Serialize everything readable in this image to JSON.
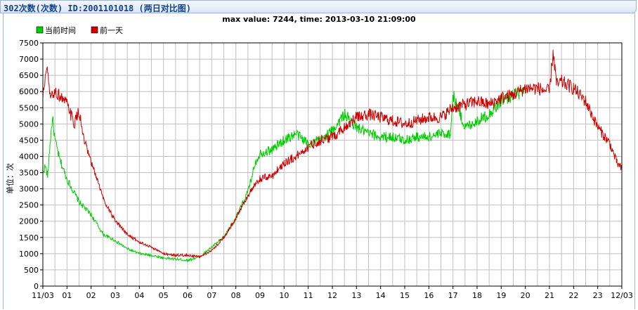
{
  "panel": {
    "title": "302次数(次数) ID:2001101018 (两日对比图)"
  },
  "colors": {
    "today": "#00cc00",
    "yesterday": "#cc0000",
    "grid": "#c0c0c0"
  },
  "chart_data": {
    "type": "line",
    "title": "max value: 7244, time: 2013-03-10 21:09:00",
    "xlabel": "",
    "ylabel": "单位：次",
    "ylim": [
      0,
      7500
    ],
    "yticks": [
      0,
      500,
      1000,
      1500,
      2000,
      2500,
      3000,
      3500,
      4000,
      4500,
      5000,
      5500,
      6000,
      6500,
      7000,
      7500
    ],
    "x_tick_labels": [
      "11/03",
      "01",
      "02",
      "03",
      "04",
      "05",
      "06",
      "07",
      "08",
      "09",
      "10",
      "11",
      "12",
      "13",
      "14",
      "15",
      "16",
      "17",
      "18",
      "19",
      "20",
      "21",
      "22",
      "23",
      "12/03"
    ],
    "legend_position": "top-left",
    "grid": true,
    "series": [
      {
        "name": "当前时间",
        "color": "#00cc00",
        "hours": [
          0,
          0.1,
          0.2,
          0.3,
          0.4,
          0.5,
          0.7,
          1,
          1.5,
          2,
          2.5,
          3,
          3.5,
          4,
          4.5,
          5,
          5.5,
          6,
          6.5,
          7,
          7.5,
          8,
          8.5,
          8.8,
          9,
          9.5,
          10,
          10.5,
          11,
          11.5,
          12,
          12.5,
          13,
          13.5,
          14,
          14.5,
          15,
          15.5,
          16,
          16.5,
          16.9,
          17,
          17.5,
          18,
          18.5,
          19,
          19.5,
          20
        ],
        "values": [
          3500,
          3700,
          3400,
          4400,
          5200,
          4500,
          3900,
          3300,
          2600,
          2200,
          1600,
          1400,
          1150,
          1000,
          950,
          870,
          830,
          800,
          900,
          1200,
          1500,
          2100,
          2900,
          3800,
          4100,
          4200,
          4500,
          4700,
          4400,
          4500,
          4800,
          5300,
          4900,
          4700,
          4600,
          4600,
          4500,
          4600,
          4600,
          4700,
          4700,
          5900,
          4900,
          5100,
          5300,
          5700,
          5900,
          6000
        ]
      },
      {
        "name": "前一天",
        "color": "#cc0000",
        "hours": [
          0,
          0.1,
          0.2,
          0.3,
          0.5,
          0.8,
          1,
          1.3,
          1.5,
          1.7,
          2,
          2.3,
          2.5,
          3,
          3.5,
          4,
          4.5,
          5,
          5.5,
          6,
          6.5,
          7,
          7.5,
          8,
          8.5,
          9,
          9.5,
          10,
          10.5,
          11,
          11.5,
          12,
          12.5,
          13,
          13.5,
          14,
          14.5,
          15,
          15.5,
          16,
          16.5,
          17,
          17.5,
          18,
          18.5,
          19,
          19.5,
          20,
          20.5,
          21,
          21.15,
          21.3,
          21.5,
          22,
          22.5,
          23,
          23.5,
          23.8,
          24
        ],
        "values": [
          5800,
          6500,
          6600,
          5800,
          6000,
          5800,
          5600,
          5000,
          5400,
          4500,
          3800,
          3200,
          2700,
          2000,
          1600,
          1350,
          1200,
          1000,
          950,
          950,
          900,
          1100,
          1500,
          2100,
          2800,
          3300,
          3400,
          3800,
          4000,
          4300,
          4500,
          4600,
          4900,
          5200,
          5300,
          5200,
          5100,
          5000,
          5100,
          5200,
          5200,
          5500,
          5600,
          5700,
          5600,
          5800,
          5900,
          6100,
          6100,
          6000,
          7244,
          6200,
          6300,
          6100,
          5700,
          4900,
          4400,
          3800,
          3600
        ]
      }
    ]
  }
}
